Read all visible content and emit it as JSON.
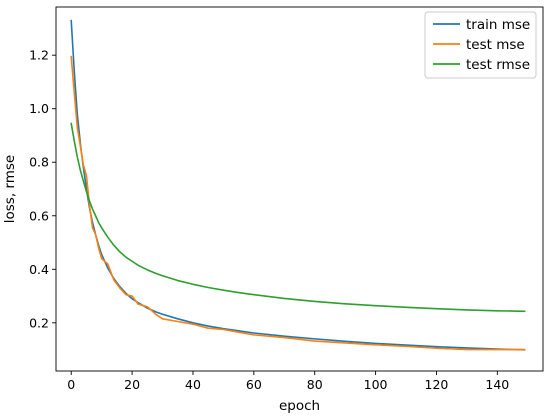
{
  "chart_data": {
    "type": "line",
    "title": "",
    "xlabel": "epoch",
    "ylabel": "loss, rmse",
    "xlim": [
      -5,
      155
    ],
    "ylim": [
      0.02,
      1.38
    ],
    "xticks": [
      0,
      20,
      40,
      60,
      80,
      100,
      120,
      140
    ],
    "yticks": [
      0.2,
      0.4,
      0.6,
      0.8,
      1.0,
      1.2
    ],
    "xtick_labels": [
      "0",
      "20",
      "40",
      "60",
      "80",
      "100",
      "120",
      "140"
    ],
    "ytick_labels": [
      "0.2",
      "0.4",
      "0.6",
      "0.8",
      "1.0",
      "1.2"
    ],
    "grid": false,
    "legend_position": "top-right",
    "x": [
      0,
      1,
      2,
      3,
      4,
      5,
      6,
      7,
      8,
      9,
      10,
      12,
      14,
      16,
      18,
      20,
      22,
      25,
      28,
      30,
      35,
      40,
      45,
      50,
      55,
      60,
      70,
      80,
      90,
      100,
      110,
      120,
      130,
      140,
      149
    ],
    "series": [
      {
        "name": "train mse",
        "color": "#1f77b4",
        "values": [
          1.33,
          1.14,
          0.98,
          0.87,
          0.78,
          0.7,
          0.63,
          0.575,
          0.53,
          0.49,
          0.455,
          0.405,
          0.365,
          0.335,
          0.31,
          0.29,
          0.275,
          0.255,
          0.24,
          0.232,
          0.215,
          0.2,
          0.188,
          0.178,
          0.17,
          0.162,
          0.15,
          0.14,
          0.131,
          0.123,
          0.117,
          0.111,
          0.106,
          0.102,
          0.099
        ]
      },
      {
        "name": "test mse",
        "color": "#ff7f0e",
        "values": [
          1.195,
          1.06,
          0.93,
          0.86,
          0.79,
          0.75,
          0.64,
          0.555,
          0.53,
          0.48,
          0.44,
          0.42,
          0.36,
          0.33,
          0.305,
          0.3,
          0.27,
          0.26,
          0.23,
          0.215,
          0.205,
          0.195,
          0.18,
          0.175,
          0.165,
          0.155,
          0.145,
          0.132,
          0.125,
          0.118,
          0.112,
          0.105,
          0.1,
          0.1,
          0.1
        ]
      },
      {
        "name": "test rmse",
        "color": "#2ca02c",
        "values": [
          0.945,
          0.88,
          0.82,
          0.77,
          0.73,
          0.69,
          0.655,
          0.625,
          0.6,
          0.575,
          0.555,
          0.52,
          0.49,
          0.465,
          0.445,
          0.43,
          0.415,
          0.398,
          0.384,
          0.376,
          0.358,
          0.344,
          0.332,
          0.322,
          0.313,
          0.305,
          0.291,
          0.28,
          0.271,
          0.264,
          0.258,
          0.253,
          0.248,
          0.245,
          0.243
        ]
      }
    ]
  }
}
